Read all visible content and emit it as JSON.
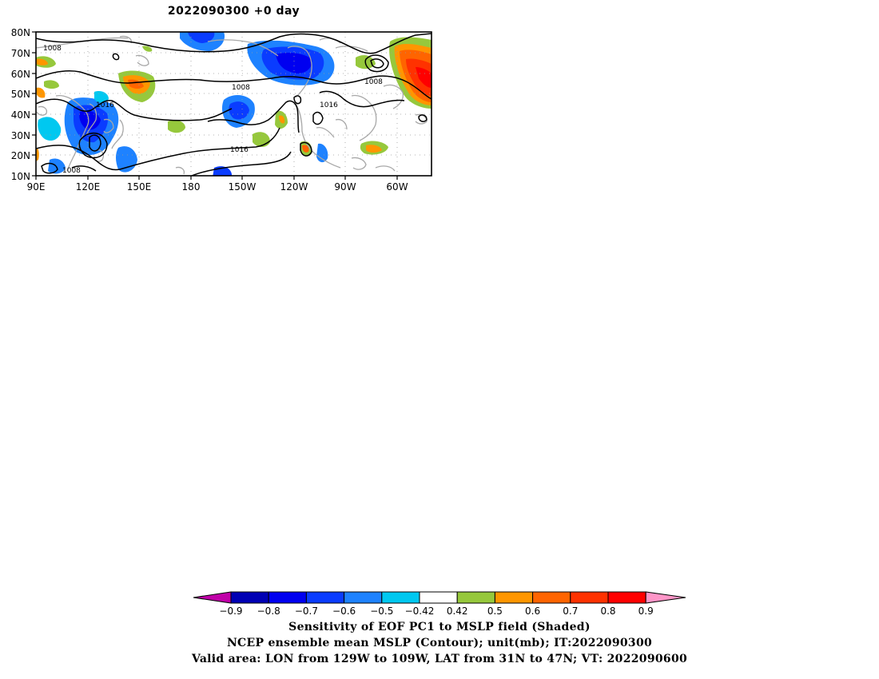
{
  "title": "2022090300  +0 day",
  "lat_labels": [
    "80N",
    "70N",
    "60N",
    "50N",
    "40N",
    "30N",
    "20N",
    "10N"
  ],
  "lon_labels": [
    "90E",
    "120E",
    "150E",
    "180",
    "150W",
    "120W",
    "90W",
    "60W"
  ],
  "contour_labels": [
    "1008",
    "1008",
    "1008",
    "1016",
    "1016",
    "1016",
    "1008"
  ],
  "colorbar": {
    "ticks": [
      "-0.9",
      "-0.8",
      "-0.7",
      "-0.6",
      "-0.5",
      "-0.42",
      "0.42",
      "0.5",
      "0.6",
      "0.7",
      "0.8",
      "0.9"
    ],
    "colors": [
      "#c000a8",
      "#0000b4",
      "#0000f0",
      "#0a3cff",
      "#1e82ff",
      "#00c8f0",
      "#ffffff",
      "#96c83c",
      "#ff9600",
      "#ff6400",
      "#ff3200",
      "#ff0000",
      "#ff96c8"
    ]
  },
  "captions": {
    "line1": "Sensitivity of EOF PC1 to MSLP field (Shaded)",
    "line2": "NCEP ensemble mean MSLP (Contour); unit(mb); IT:2022090300",
    "line3": "Valid area: LON from 129W to 109W, LAT from 31N to 47N; VT: 2022090600"
  },
  "colors": {
    "contour": "#000000",
    "coastline": "#a8a8a8",
    "grid": "#9a9a9a"
  }
}
